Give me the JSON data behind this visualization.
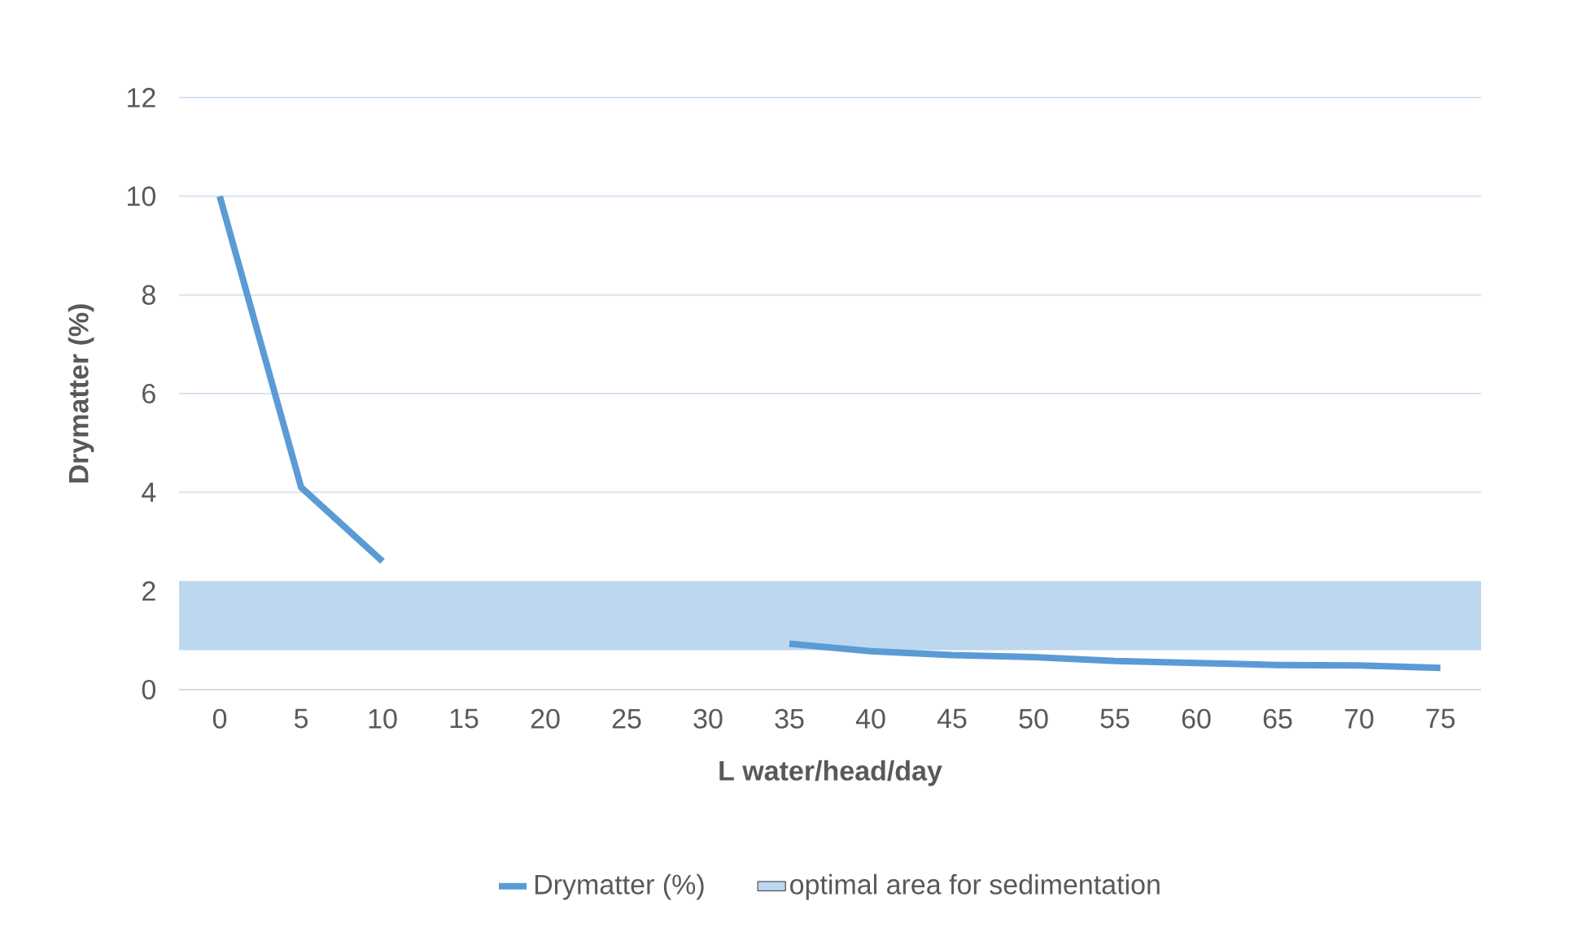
{
  "chart_data": {
    "type": "line",
    "xlabel": "L water/head/day",
    "ylabel": "Drymatter (%)",
    "categories": [
      "0",
      "5",
      "10",
      "15",
      "20",
      "25",
      "30",
      "35",
      "40",
      "45",
      "50",
      "55",
      "60",
      "65",
      "70",
      "75"
    ],
    "ylim": [
      0,
      12
    ],
    "yticks": [
      0,
      2,
      4,
      6,
      8,
      10,
      12
    ],
    "grid": "y",
    "legend": "bottom",
    "marker": "none",
    "series": [
      {
        "name": "Drymatter (%)",
        "color": "#5b9bd5",
        "values": [
          10,
          4.1,
          2.6,
          null,
          null,
          null,
          null,
          0.93,
          0.78,
          0.7,
          0.66,
          0.58,
          0.54,
          0.5,
          0.49,
          0.44
        ]
      }
    ],
    "bands": [
      {
        "axis": "y",
        "from": 0.8,
        "to": 2.2,
        "label": "optimal area for sedimentation",
        "color": "#bdd7ee"
      }
    ]
  }
}
